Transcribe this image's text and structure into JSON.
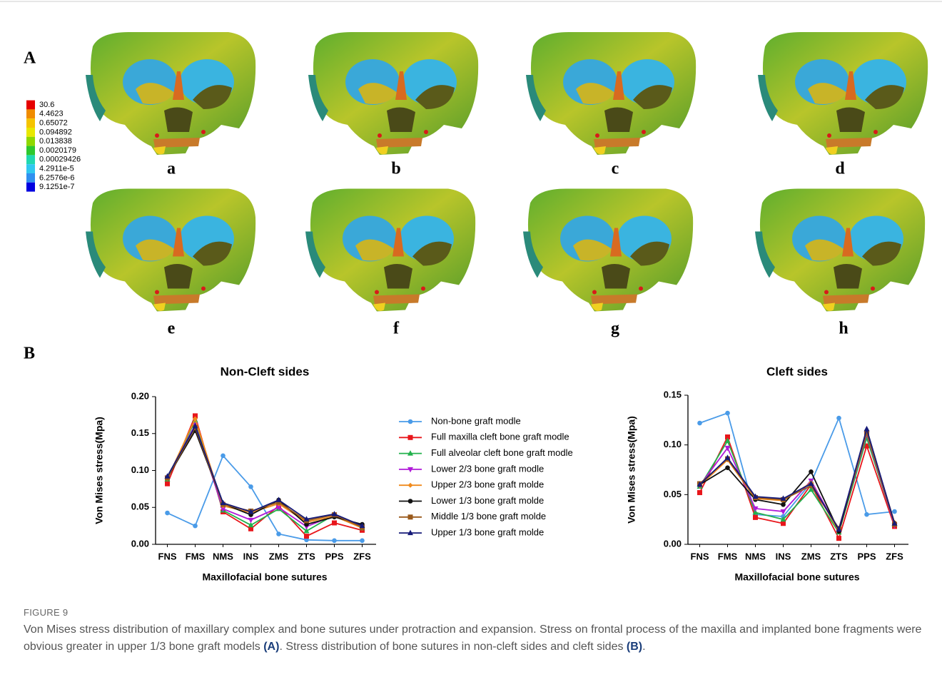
{
  "figure": {
    "panel_a": "A",
    "panel_b": "B",
    "sublabels": [
      "a",
      "b",
      "c",
      "d",
      "e",
      "f",
      "g",
      "h"
    ]
  },
  "contour_legend": {
    "labels": [
      "30.6",
      "4.4623",
      "0.65072",
      "0.094892",
      "0.013838",
      "0.0020179",
      "0.00029426",
      "4.2911e-5",
      "6.2576e-6",
      "9.1251e-7"
    ],
    "colors": [
      "#e60000",
      "#f08c00",
      "#f5c400",
      "#e8e800",
      "#8fd800",
      "#2ec82e",
      "#20d8b0",
      "#30c8f0",
      "#3090f0",
      "#0000e0"
    ]
  },
  "chart_data": [
    {
      "type": "line",
      "title": "Non-Cleft sides",
      "x_label": "Maxillofacial bone sutures",
      "y_label": "Von Mises stress(Mpa)",
      "categories": [
        "FNS",
        "FMS",
        "NMS",
        "INS",
        "ZMS",
        "ZTS",
        "PPS",
        "ZFS"
      ],
      "ylim": [
        0,
        0.2
      ],
      "yticks": [
        {
          "value": 0,
          "label": "0.00"
        },
        {
          "value": 0.05,
          "label": "0.05"
        },
        {
          "value": 0.1,
          "label": "0.10"
        },
        {
          "value": 0.15,
          "label": "0.15"
        },
        {
          "value": 0.2,
          "label": "0.20"
        }
      ],
      "legend": "right",
      "series": [
        {
          "name": "Non-bone graft modle",
          "color": "#4a9be8",
          "marker": "circle",
          "values": [
            0.0425,
            0.025,
            0.12,
            0.078,
            0.014,
            0.006,
            0.005,
            0.005
          ]
        },
        {
          "name": "Full maxilla cleft bone graft modle",
          "color": "#e8161b",
          "marker": "square",
          "values": [
            0.082,
            0.174,
            0.044,
            0.021,
            0.052,
            0.011,
            0.029,
            0.019
          ]
        },
        {
          "name": "Full alveolar cleft bone graft modle",
          "color": "#22b14c",
          "marker": "triangle",
          "values": [
            0.088,
            0.168,
            0.046,
            0.026,
            0.048,
            0.018,
            0.04,
            0.022
          ]
        },
        {
          "name": "Lower 2/3 bone graft modle",
          "color": "#b01ad8",
          "marker": "triangle-down",
          "values": [
            0.09,
            0.162,
            0.048,
            0.033,
            0.05,
            0.024,
            0.039,
            0.023
          ]
        },
        {
          "name": "Upper 2/3 bone graft molde",
          "color": "#f08a1c",
          "marker": "diamond",
          "values": [
            0.089,
            0.17,
            0.052,
            0.043,
            0.055,
            0.03,
            0.038,
            0.022
          ]
        },
        {
          "name": "Lower 1/3 bone graft molde",
          "color": "#111111",
          "marker": "circle",
          "values": [
            0.09,
            0.154,
            0.055,
            0.04,
            0.06,
            0.027,
            0.037,
            0.027
          ]
        },
        {
          "name": "Middle 1/3 bone graft molde",
          "color": "#9a5a1c",
          "marker": "square",
          "values": [
            0.09,
            0.158,
            0.054,
            0.045,
            0.057,
            0.032,
            0.04,
            0.023
          ]
        },
        {
          "name": "Upper 1/3 bone graft molde",
          "color": "#161a78",
          "marker": "triangle",
          "values": [
            0.092,
            0.16,
            0.056,
            0.044,
            0.06,
            0.034,
            0.041,
            0.025
          ]
        }
      ]
    },
    {
      "type": "line",
      "title": "Cleft sides",
      "x_label": "Maxillofacial bone sutures",
      "y_label": "Von Mises stress(Mpa)",
      "categories": [
        "FNS",
        "FMS",
        "NMS",
        "INS",
        "ZMS",
        "ZTS",
        "PPS",
        "ZFS"
      ],
      "ylim": [
        0,
        0.15
      ],
      "yticks": [
        {
          "value": 0,
          "label": "0.00"
        },
        {
          "value": 0.05,
          "label": "0.05"
        },
        {
          "value": 0.1,
          "label": "0.10"
        },
        {
          "value": 0.15,
          "label": "0.15"
        }
      ],
      "series": [
        {
          "color": "#4a9be8",
          "marker": "circle",
          "values": [
            0.122,
            0.132,
            0.03,
            0.028,
            0.062,
            0.127,
            0.03,
            0.033
          ]
        },
        {
          "color": "#e8161b",
          "marker": "square",
          "values": [
            0.052,
            0.108,
            0.027,
            0.021,
            0.06,
            0.006,
            0.099,
            0.018
          ]
        },
        {
          "color": "#22b14c",
          "marker": "triangle",
          "values": [
            0.058,
            0.104,
            0.032,
            0.025,
            0.055,
            0.012,
            0.107,
            0.02
          ]
        },
        {
          "color": "#b01ad8",
          "marker": "triangle-down",
          "values": [
            0.059,
            0.097,
            0.036,
            0.033,
            0.064,
            0.014,
            0.111,
            0.019
          ]
        },
        {
          "color": "#f08a1c",
          "marker": "diamond",
          "values": [
            0.059,
            0.085,
            0.046,
            0.044,
            0.062,
            0.013,
            0.113,
            0.022
          ]
        },
        {
          "color": "#111111",
          "marker": "circle",
          "values": [
            0.06,
            0.077,
            0.045,
            0.04,
            0.073,
            0.013,
            0.114,
            0.021
          ]
        },
        {
          "color": "#9a5a1c",
          "marker": "square",
          "values": [
            0.061,
            0.086,
            0.047,
            0.045,
            0.059,
            0.016,
            0.112,
            0.02
          ]
        },
        {
          "color": "#161a78",
          "marker": "triangle",
          "values": [
            0.06,
            0.087,
            0.048,
            0.046,
            0.061,
            0.015,
            0.116,
            0.021
          ]
        }
      ]
    }
  ],
  "caption": {
    "label": "FIGURE 9",
    "parts": [
      "Von Mises stress distribution of maxillary complex and bone sutures under protraction and expansion. Stress on frontal process of the maxilla and implanted bone fragments were obvious greater in upper 1/3 bone graft models ",
      "(A)",
      ". Stress distribution of bone sutures in non-cleft sides and cleft sides ",
      "(B)",
      "."
    ]
  }
}
